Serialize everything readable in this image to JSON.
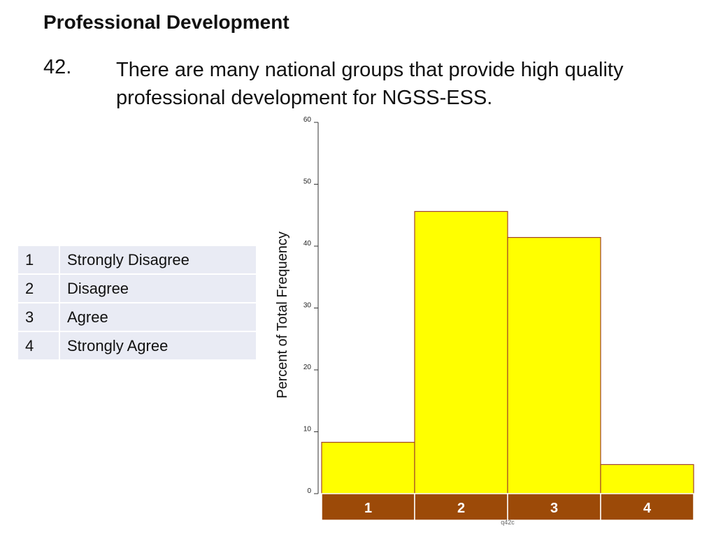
{
  "header": {
    "section_title": "Professional Development",
    "question_number": "42.",
    "question_text": "There are many national groups that provide high quality professional development for NGSS-ESS."
  },
  "legend": {
    "rows": [
      {
        "code": "1",
        "label": "Strongly Disagree"
      },
      {
        "code": "2",
        "label": "Disagree"
      },
      {
        "code": "3",
        "label": "Agree"
      },
      {
        "code": "4",
        "label": "Strongly Agree"
      }
    ]
  },
  "colors": {
    "bar_fill": "#ffff00",
    "bar_stroke": "#a0432a",
    "category_band": "#9c4a08",
    "legend_bg": "#e9ebf4"
  },
  "chart_data": {
    "type": "bar",
    "categories": [
      "1",
      "2",
      "3",
      "4"
    ],
    "values": [
      8.3,
      45.6,
      41.4,
      4.7
    ],
    "ylabel": "Percent of Total Frequency",
    "xlabel": "q42c",
    "ylim": [
      0,
      60
    ],
    "yticks": [
      0,
      10,
      20,
      30,
      40,
      50,
      60
    ],
    "grid": false
  }
}
